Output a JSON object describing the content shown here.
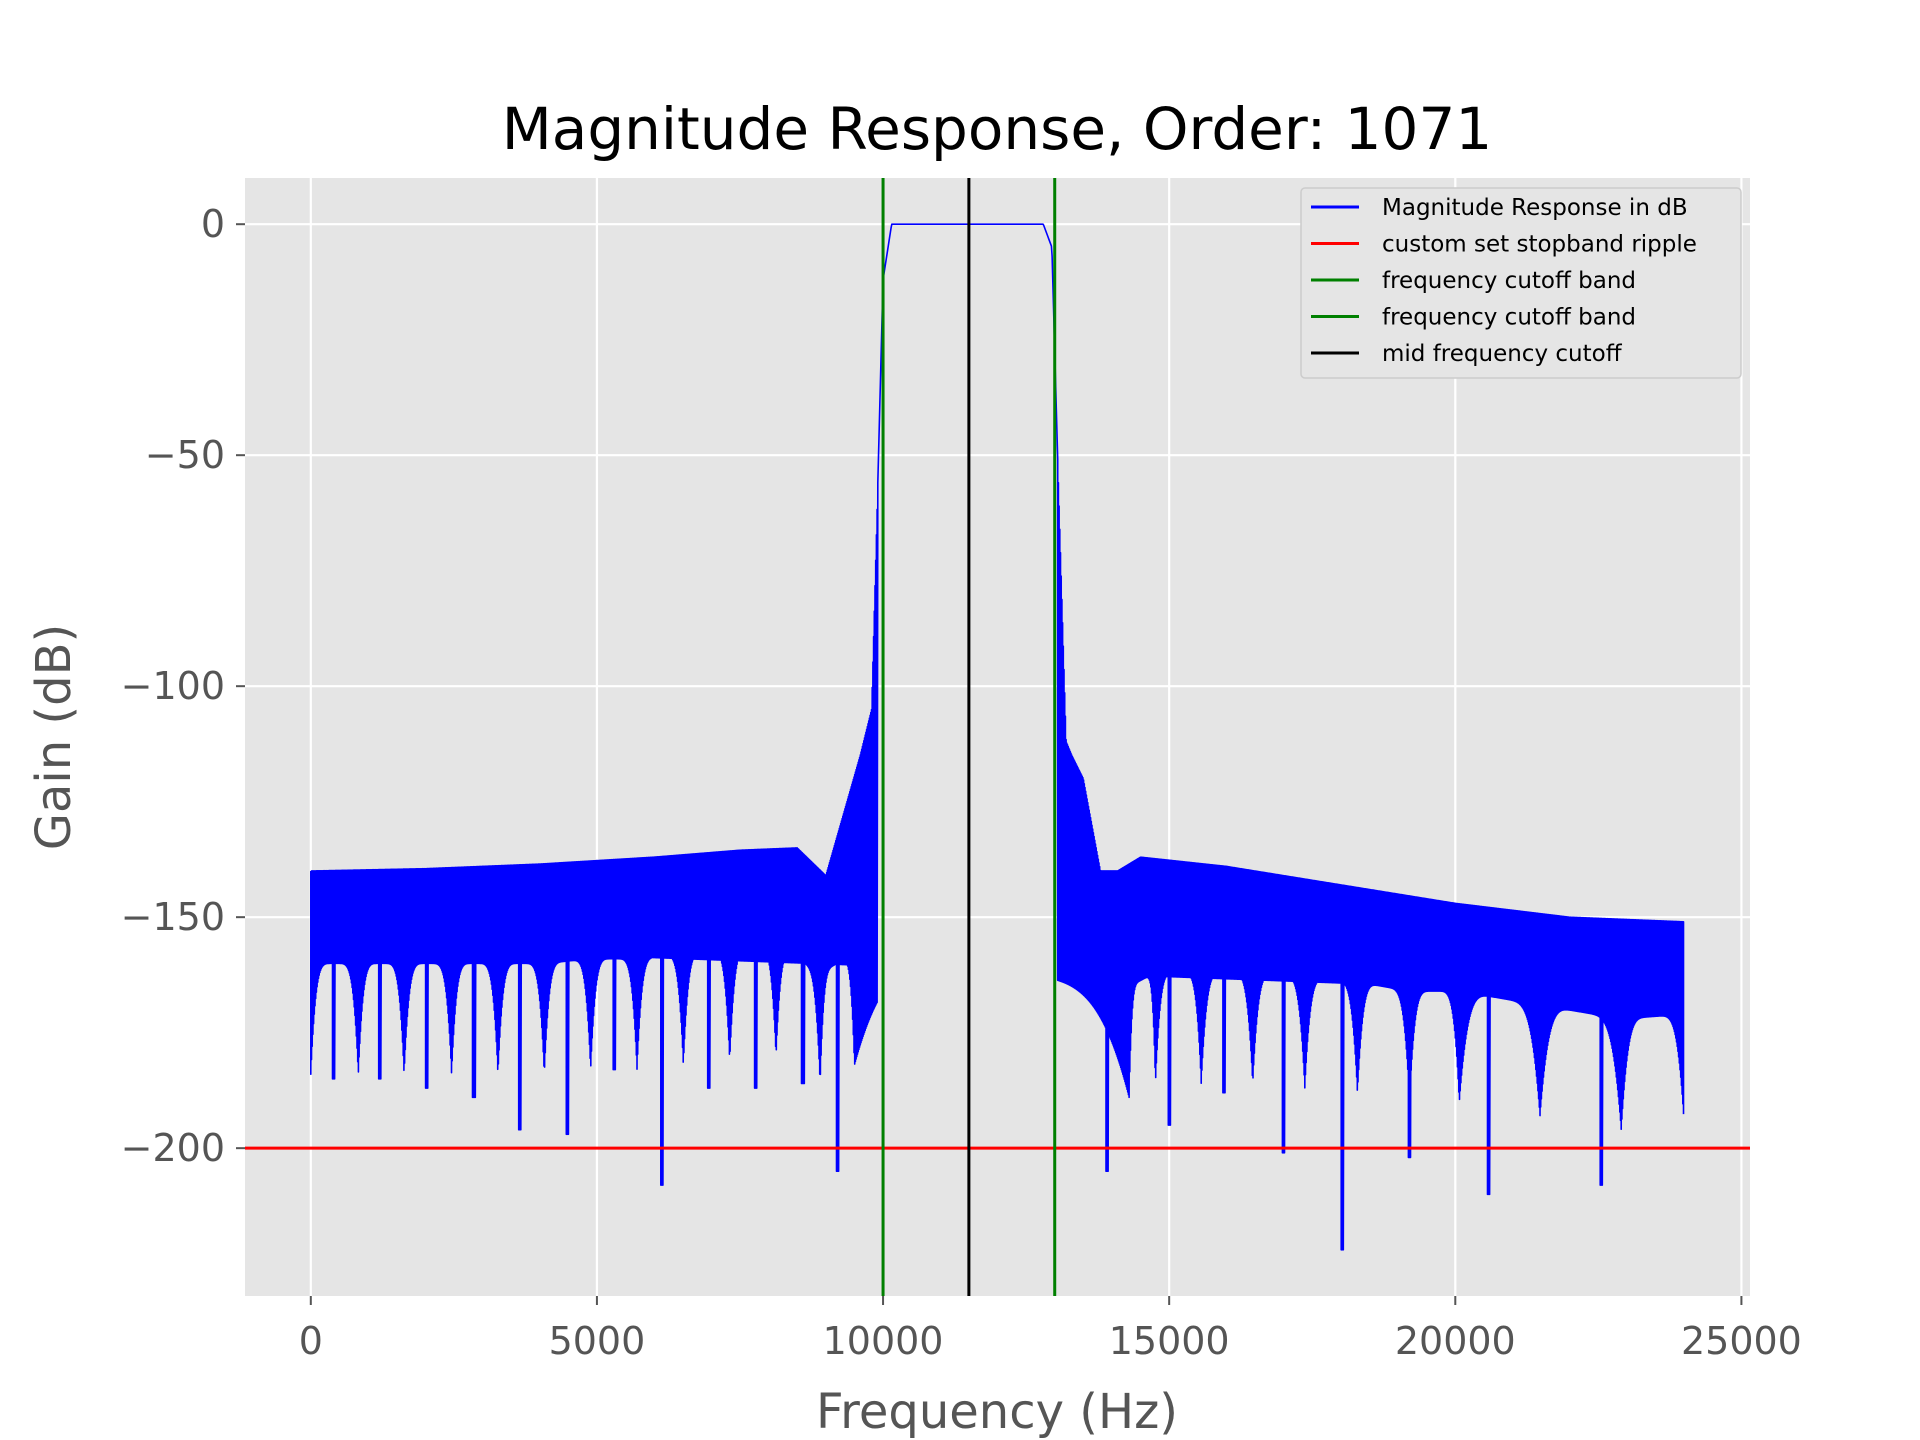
{
  "chart_data": {
    "type": "line",
    "title": "Magnitude Response, Order: 1071",
    "xlabel": "Frequency (Hz)",
    "ylabel": "Gain (dB)",
    "xlim": [
      -1150,
      25150
    ],
    "ylim": [
      -232,
      10
    ],
    "xticks": [
      0,
      5000,
      10000,
      15000,
      20000,
      25000
    ],
    "xtick_labels": [
      "0",
      "5000",
      "10000",
      "15000",
      "20000",
      "25000"
    ],
    "yticks": [
      0,
      -50,
      -100,
      -150,
      -200
    ],
    "ytick_labels": [
      "0",
      "−50",
      "−100",
      "−150",
      "−200"
    ],
    "grid": true,
    "legend_position": "top-right",
    "colors": {
      "magnitude": "#0000ff",
      "ripple": "#ff0000",
      "cutoff": "#008000",
      "mid": "#000000",
      "axes_background": "#e5e5e5",
      "grid": "#ffffff"
    },
    "series": [
      {
        "name": "Magnitude Response in dB",
        "color": "#0000ff",
        "passband_gain_db": 0,
        "upper_envelope": {
          "x": [
            0,
            2000,
            4000,
            6000,
            7500,
            8500,
            9000,
            9300,
            9600,
            9800,
            9900,
            10000,
            10150,
            12800,
            12950,
            13050,
            13200,
            13300,
            13500,
            13800,
            14100,
            14500,
            16000,
            18000,
            20000,
            22000,
            24000
          ],
          "y": [
            -140,
            -139.5,
            -138.5,
            -137,
            -135.5,
            -135,
            -141,
            -128,
            -115,
            -105,
            -60,
            -12,
            0,
            0,
            -5,
            -50,
            -112,
            -115,
            -120,
            -140,
            -140,
            -137,
            -139,
            -143,
            -147,
            -150,
            -151
          ]
        },
        "lower_envelope": {
          "x": [
            0,
            24000
          ],
          "y": [
            -160,
            -171
          ]
        },
        "lobe_peaks": {
          "x": [
            0,
            830,
            1630,
            2460,
            3270,
            4080,
            4890,
            5700,
            6510,
            7320,
            8130,
            8900,
            9500,
            14300,
            14760,
            15560,
            16460,
            17370,
            18290,
            19200,
            20070,
            21480,
            22900,
            24000
          ],
          "y": [
            -160,
            -160,
            -160,
            -160,
            -160,
            -160,
            -159,
            -159,
            -158,
            -157,
            -156,
            -162,
            -158,
            -165,
            -162,
            -162,
            -162,
            -163,
            -164,
            -166,
            -166,
            -169,
            -172,
            -171
          ]
        },
        "nulls": {
          "x": [
            400,
            1200,
            2030,
            2850,
            3650,
            4480,
            5300,
            6130,
            6950,
            7770,
            8600,
            9200,
            13920,
            15000,
            15960,
            17000,
            18020,
            19200,
            20580,
            22550
          ],
          "y": [
            -185,
            -185,
            -187,
            -189,
            -196,
            -197,
            -183,
            -208,
            -187,
            -187,
            -186,
            -205,
            -205,
            -195,
            -188,
            -201,
            -222,
            -202,
            -210,
            -208
          ]
        }
      },
      {
        "name": "custom set stopband ripple",
        "color": "#ff0000",
        "y": -200
      },
      {
        "name": "frequency cutoff band",
        "color": "#008000",
        "x": 10000
      },
      {
        "name": "frequency cutoff band",
        "color": "#008000",
        "x": 13000
      },
      {
        "name": "mid frequency cutoff",
        "color": "#000000",
        "x": 11500
      }
    ]
  }
}
